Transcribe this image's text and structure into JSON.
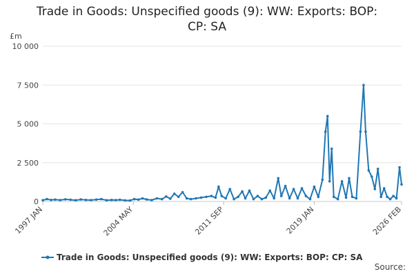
{
  "chart_data": {
    "type": "line",
    "title_line1": "Trade in Goods: Unspecified goods (9): WW: Exports: BOP:",
    "title_line2": "CP: SA",
    "y_unit": "£m",
    "source": "Source:",
    "ylim": [
      0,
      10000
    ],
    "y_ticks": [
      {
        "value": 0,
        "label": "0"
      },
      {
        "value": 2500,
        "label": "2 500"
      },
      {
        "value": 5000,
        "label": "5 000"
      },
      {
        "value": 7500,
        "label": "7 500"
      },
      {
        "value": 10000,
        "label": "10 000"
      }
    ],
    "x_start": "1997-01",
    "x_end": "2026-02",
    "x_ticks": [
      {
        "date": "1997-01",
        "label": "1997 JAN"
      },
      {
        "date": "2004-05",
        "label": "2004 MAY"
      },
      {
        "date": "2011-09",
        "label": "2011 SEP"
      },
      {
        "date": "2019-01",
        "label": "2019 JAN"
      },
      {
        "date": "2026-02",
        "label": "2026 FEB"
      }
    ],
    "grid": "horizontal",
    "legend_position": "bottom",
    "series": [
      {
        "name": "Trade in Goods: Unspecified goods (9): WW: Exports: BOP: CP: SA",
        "color": "#1f77b4",
        "points": [
          [
            "1997-01",
            80
          ],
          [
            "1997-05",
            150
          ],
          [
            "1997-09",
            100
          ],
          [
            "1998-01",
            120
          ],
          [
            "1998-06",
            90
          ],
          [
            "1998-11",
            140
          ],
          [
            "1999-04",
            110
          ],
          [
            "1999-09",
            80
          ],
          [
            "2000-02",
            130
          ],
          [
            "2000-07",
            100
          ],
          [
            "2000-12",
            90
          ],
          [
            "2001-05",
            120
          ],
          [
            "2001-10",
            150
          ],
          [
            "2002-03",
            80
          ],
          [
            "2002-08",
            100
          ],
          [
            "2002-12",
            90
          ],
          [
            "2003-04",
            110
          ],
          [
            "2003-09",
            70
          ],
          [
            "2004-02",
            60
          ],
          [
            "2004-06",
            150
          ],
          [
            "2004-10",
            120
          ],
          [
            "2005-02",
            200
          ],
          [
            "2005-06",
            130
          ],
          [
            "2005-11",
            90
          ],
          [
            "2006-04",
            200
          ],
          [
            "2006-09",
            150
          ],
          [
            "2007-01",
            320
          ],
          [
            "2007-05",
            180
          ],
          [
            "2007-09",
            500
          ],
          [
            "2008-01",
            300
          ],
          [
            "2008-05",
            600
          ],
          [
            "2008-09",
            200
          ],
          [
            "2009-01",
            150
          ],
          [
            "2009-06",
            200
          ],
          [
            "2009-11",
            250
          ],
          [
            "2010-04",
            300
          ],
          [
            "2010-09",
            350
          ],
          [
            "2011-01",
            250
          ],
          [
            "2011-04",
            950
          ],
          [
            "2011-07",
            350
          ],
          [
            "2011-11",
            200
          ],
          [
            "2012-03",
            800
          ],
          [
            "2012-07",
            150
          ],
          [
            "2012-11",
            300
          ],
          [
            "2013-03",
            650
          ],
          [
            "2013-06",
            200
          ],
          [
            "2013-10",
            700
          ],
          [
            "2014-02",
            150
          ],
          [
            "2014-06",
            350
          ],
          [
            "2014-10",
            150
          ],
          [
            "2015-02",
            250
          ],
          [
            "2015-06",
            700
          ],
          [
            "2015-10",
            200
          ],
          [
            "2016-02",
            1500
          ],
          [
            "2016-05",
            350
          ],
          [
            "2016-09",
            1000
          ],
          [
            "2017-01",
            200
          ],
          [
            "2017-05",
            800
          ],
          [
            "2017-09",
            200
          ],
          [
            "2018-01",
            850
          ],
          [
            "2018-05",
            350
          ],
          [
            "2018-09",
            150
          ],
          [
            "2019-01",
            950
          ],
          [
            "2019-05",
            300
          ],
          [
            "2019-09",
            1400
          ],
          [
            "2019-12",
            4500
          ],
          [
            "2020-02",
            5500
          ],
          [
            "2020-04",
            1300
          ],
          [
            "2020-06",
            3400
          ],
          [
            "2020-08",
            300
          ],
          [
            "2020-12",
            150
          ],
          [
            "2021-04",
            1300
          ],
          [
            "2021-08",
            250
          ],
          [
            "2021-11",
            1500
          ],
          [
            "2022-02",
            300
          ],
          [
            "2022-06",
            200
          ],
          [
            "2022-10",
            4500
          ],
          [
            "2023-01",
            7500
          ],
          [
            "2023-03",
            4500
          ],
          [
            "2023-06",
            2000
          ],
          [
            "2023-09",
            1600
          ],
          [
            "2023-12",
            800
          ],
          [
            "2024-03",
            2100
          ],
          [
            "2024-06",
            300
          ],
          [
            "2024-09",
            850
          ],
          [
            "2024-12",
            300
          ],
          [
            "2025-03",
            150
          ],
          [
            "2025-06",
            350
          ],
          [
            "2025-09",
            200
          ],
          [
            "2025-12",
            2200
          ],
          [
            "2026-02",
            1100
          ]
        ]
      }
    ]
  }
}
